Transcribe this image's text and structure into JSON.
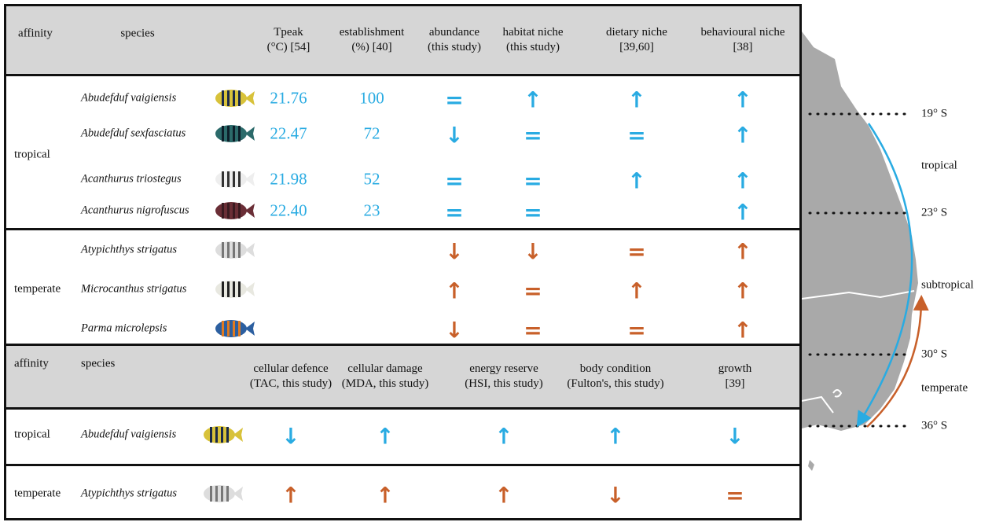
{
  "table1": {
    "headers": [
      "affinity",
      "species",
      "Tpeak\n(°C) [54]",
      "establishment\n(%) [40]",
      "abundance\n(this study)",
      "habitat niche\n(this study)",
      "dietary niche\n[39,60]",
      "behavioural niche\n[38]"
    ],
    "groups": [
      {
        "affinity": "tropical",
        "rows": [
          {
            "species": "Abudefduf vaigiensis",
            "tpeak": "21.76",
            "establishment": "100",
            "cells": [
              "=",
              "↑",
              "↑",
              "↑"
            ]
          },
          {
            "species": "Abudefduf sexfasciatus",
            "tpeak": "22.47",
            "establishment": "72",
            "cells": [
              "↓",
              "=",
              "=",
              "↑"
            ]
          },
          {
            "species": "Acanthurus triostegus",
            "tpeak": "21.98",
            "establishment": "52",
            "cells": [
              "=",
              "=",
              "↑",
              "↑"
            ]
          },
          {
            "species": "Acanthurus nigrofuscus",
            "tpeak": "22.40",
            "establishment": "23",
            "cells": [
              "=",
              "=",
              null,
              "↑"
            ]
          }
        ]
      },
      {
        "affinity": "temperate",
        "rows": [
          {
            "species": "Atypichthys strigatus",
            "tpeak": null,
            "establishment": null,
            "cells": [
              "↓",
              "↓",
              "=",
              "↑"
            ]
          },
          {
            "species": "Microcanthus strigatus",
            "tpeak": null,
            "establishment": null,
            "cells": [
              "↑",
              "=",
              "↑",
              "↑"
            ]
          },
          {
            "species": "Parma microlepsis",
            "tpeak": null,
            "establishment": null,
            "cells": [
              "↓",
              "=",
              "=",
              "↑"
            ]
          }
        ]
      }
    ]
  },
  "table2": {
    "headers": [
      "affinity",
      "species",
      "cellular defence\n(TAC, this study)",
      "cellular damage\n(MDA, this study)",
      "energy reserve\n(HSI, this study)",
      "body condition\n(Fulton's, this study)",
      "growth\n[39]"
    ],
    "rows": [
      {
        "affinity": "tropical",
        "species": "Abudefduf vaigiensis",
        "cells": [
          "↓",
          "↑",
          "↑",
          "↑",
          "↓"
        ]
      },
      {
        "affinity": "temperate",
        "species": "Atypichthys strigatus",
        "cells": [
          "↑",
          "↑",
          "↑",
          "↓",
          "="
        ]
      }
    ]
  },
  "map": {
    "labels": [
      "19° S",
      "tropical",
      "23° S",
      "subtropical",
      "30° S",
      "temperate",
      "36° S"
    ]
  }
}
